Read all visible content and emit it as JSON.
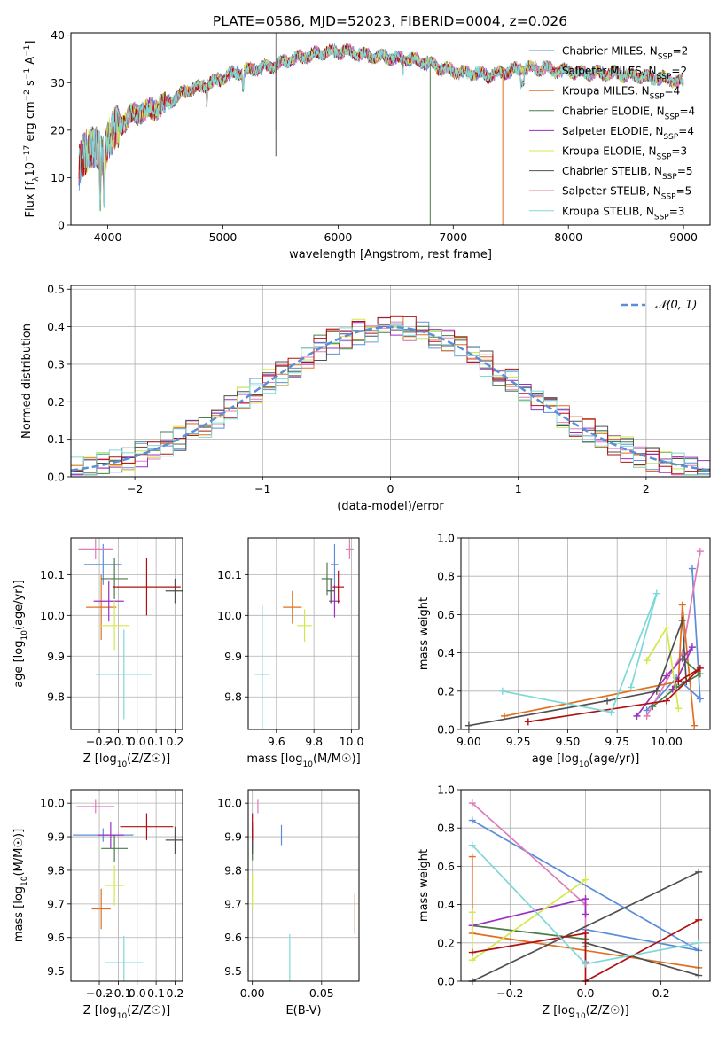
{
  "figure_title": "PLATE=0586, MJD=52023, FIBERID=0004, z=0.026",
  "fits": [
    {
      "name": "Chabrier MILES, N_SSP=2",
      "imf": "Chabrier",
      "lib": "MILES",
      "nssp": "2",
      "color": "#5b8dd9"
    },
    {
      "name": "Salpeter MILES, N_SSP=2",
      "imf": "Salpeter",
      "lib": "MILES",
      "nssp": "2",
      "color": "#e07bb8"
    },
    {
      "name": "Kroupa MILES, N_SSP=4",
      "imf": "Kroupa",
      "lib": "MILES",
      "nssp": "4",
      "color": "#e07020"
    },
    {
      "name": "Chabrier ELODIE, N_SSP=4",
      "imf": "Chabrier",
      "lib": "ELODIE",
      "nssp": "4",
      "color": "#4a7d4a"
    },
    {
      "name": "Salpeter ELODIE, N_SSP=4",
      "imf": "Salpeter",
      "lib": "ELODIE",
      "nssp": "4",
      "color": "#9b30c0"
    },
    {
      "name": "Kroupa ELODIE, N_SSP=3",
      "imf": "Kroupa",
      "lib": "ELODIE",
      "nssp": "3",
      "color": "#d4e84a"
    },
    {
      "name": "Chabrier STELIB, N_SSP=5",
      "imf": "Chabrier",
      "lib": "STELIB",
      "nssp": "5",
      "color": "#505050"
    },
    {
      "name": "Salpeter STELIB, N_SSP=5",
      "imf": "Salpeter",
      "lib": "STELIB",
      "nssp": "5",
      "color": "#b01010"
    },
    {
      "name": "Kroupa STELIB, N_SSP=3",
      "imf": "Kroupa",
      "lib": "STELIB",
      "nssp": "3",
      "color": "#7fd8d8"
    }
  ],
  "chart_data": [
    {
      "id": "spectrum",
      "type": "line",
      "xlabel": "wavelength [Angstrom, rest frame]",
      "ylabel": "Flux [f_λ10^-17 erg cm^-2 s^-1 A^-1]",
      "xlim": [
        3680,
        9230
      ],
      "ylim": [
        0,
        40.5
      ],
      "xticks": [
        4000,
        5000,
        6000,
        7000,
        8000,
        9000
      ],
      "yticks": [
        0,
        10,
        20,
        30,
        40
      ],
      "grid": false,
      "legend": "top-right",
      "continuum": {
        "x": [
          3750,
          3800,
          3850,
          3900,
          3950,
          4000,
          4100,
          4200,
          4300,
          4400,
          4500,
          4600,
          4700,
          4800,
          4900,
          5000,
          5100,
          5200,
          5300,
          5400,
          5500,
          5600,
          5700,
          5800,
          5900,
          6000,
          6100,
          6200,
          6300,
          6400,
          6500,
          6600,
          6700,
          6800,
          6900,
          7000,
          7100,
          7200,
          7300,
          7400,
          7500,
          7600,
          7700,
          7800,
          7900,
          8000,
          8100,
          8200,
          8300,
          8400,
          8500,
          8600,
          8700,
          8800,
          8900,
          9000
        ],
        "y": [
          12,
          15,
          17,
          16,
          14,
          18,
          21,
          23,
          24,
          24.5,
          25.5,
          27,
          28.5,
          29,
          30,
          31,
          32,
          32.5,
          33,
          33.5,
          34,
          35,
          35.5,
          36,
          36.5,
          36.5,
          36.5,
          36,
          35.5,
          35.5,
          35,
          35,
          34.5,
          34,
          33,
          32.5,
          32,
          32,
          31.5,
          32,
          32.5,
          33,
          33,
          33,
          32.5,
          32.5,
          32,
          32,
          32,
          32,
          31.5,
          31.5,
          31,
          31,
          30.5,
          30
        ]
      },
      "spikes": [
        {
          "x": 5460,
          "y": 14.5,
          "color": "#505050"
        },
        {
          "x": 6800,
          "y": 0,
          "color": "#4a7d4a"
        },
        {
          "x": 7430,
          "y": 0,
          "color": "#e07020"
        }
      ]
    },
    {
      "id": "residuals",
      "type": "line",
      "xlabel": "(data-model)/error",
      "ylabel": "Normed distribution",
      "xlim": [
        -2.5,
        2.5
      ],
      "ylim": [
        0,
        0.51
      ],
      "xticks": [
        -2,
        -1,
        0,
        1,
        2
      ],
      "yticks": [
        0,
        0.1,
        0.2,
        0.3,
        0.4,
        0.5
      ],
      "grid": true,
      "legend": "top-right",
      "reference": {
        "name": "N(0,1)",
        "label": "𝒩(0, 1)",
        "color": "#5b8dd9"
      },
      "bin_width": 0.1
    },
    {
      "id": "age_vs_Z",
      "type": "scatter",
      "xlabel": "Z [log10(Z/Z☉)]",
      "ylabel": "age [log10(age/yr)]",
      "xlim": [
        -0.35,
        0.24
      ],
      "ylim": [
        9.72,
        10.19
      ],
      "xticks": [
        -0.2,
        -0.1,
        0.0,
        0.1,
        0.2
      ],
      "yticks": [
        9.8,
        9.9,
        10.0,
        10.1
      ],
      "grid": true,
      "points": [
        {
          "x": -0.18,
          "y": 10.125,
          "xerr": 0.1,
          "yerr": 0.05
        },
        {
          "x": -0.22,
          "y": 10.163,
          "xerr": 0.09,
          "yerr": 0.025
        },
        {
          "x": -0.19,
          "y": 10.02,
          "xerr": 0.08,
          "yerr": 0.08
        },
        {
          "x": -0.12,
          "y": 10.09,
          "xerr": 0.07,
          "yerr": 0.05
        },
        {
          "x": -0.15,
          "y": 10.035,
          "xerr": 0.08,
          "yerr": 0.05
        },
        {
          "x": -0.12,
          "y": 9.975,
          "xerr": 0.08,
          "yerr": 0.06
        },
        {
          "x": 0.2,
          "y": 10.06,
          "xerr": 0.05,
          "yerr": 0.03
        },
        {
          "x": 0.05,
          "y": 10.07,
          "xerr": 0.18,
          "yerr": 0.07
        },
        {
          "x": -0.07,
          "y": 9.855,
          "xerr": 0.15,
          "yerr": 0.11
        }
      ]
    },
    {
      "id": "age_vs_mass",
      "type": "scatter",
      "xlabel": "mass [log10(M/M☉)]",
      "ylabel": "",
      "xlim": [
        9.45,
        10.04
      ],
      "ylim": [
        9.72,
        10.19
      ],
      "xticks": [
        9.6,
        9.8,
        10.0
      ],
      "yticks": [
        9.8,
        9.9,
        10.0,
        10.1
      ],
      "grid": true,
      "points": [
        {
          "x": 9.91,
          "y": 10.125,
          "xerr": 0.02,
          "yerr": 0.05
        },
        {
          "x": 9.99,
          "y": 10.163,
          "xerr": 0.02,
          "yerr": 0.025
        },
        {
          "x": 9.685,
          "y": 10.02,
          "xerr": 0.05,
          "yerr": 0.04
        },
        {
          "x": 9.87,
          "y": 10.09,
          "xerr": 0.03,
          "yerr": 0.04
        },
        {
          "x": 9.91,
          "y": 10.035,
          "xerr": 0.03,
          "yerr": 0.04
        },
        {
          "x": 9.75,
          "y": 9.975,
          "xerr": 0.04,
          "yerr": 0.04
        },
        {
          "x": 9.89,
          "y": 10.06,
          "xerr": 0.02,
          "yerr": 0.03
        },
        {
          "x": 9.93,
          "y": 10.07,
          "xerr": 0.03,
          "yerr": 0.04
        },
        {
          "x": 9.525,
          "y": 9.855,
          "xerr": 0.04,
          "yerr": 0.17
        }
      ]
    },
    {
      "id": "weight_vs_age",
      "type": "line",
      "xlabel": "age [log10(age/yr)]",
      "ylabel": "mass weight",
      "xlim": [
        8.96,
        10.22
      ],
      "ylim": [
        0,
        1.0
      ],
      "xticks": [
        9.0,
        9.25,
        9.5,
        9.75,
        10.0
      ],
      "xticklabels": [
        "9.00",
        "9.25",
        "9.50",
        "9.75",
        "10.00"
      ],
      "yticks": [
        0,
        0.2,
        0.4,
        0.6,
        0.8,
        1.0
      ],
      "grid": true,
      "series": [
        {
          "x": [
            10.13,
            10.17,
            10.05,
            9.9
          ],
          "y": [
            0.84,
            0.16,
            0.27,
            0.1
          ]
        },
        {
          "x": [
            10.17,
            10.08,
            9.9
          ],
          "y": [
            0.93,
            0.4,
            0.07
          ]
        },
        {
          "x": [
            9.18,
            10.06,
            10.08,
            10.14
          ],
          "y": [
            0.07,
            0.25,
            0.65,
            0.02
          ]
        },
        {
          "x": [
            9.93,
            10.05,
            10.17,
            10.08
          ],
          "y": [
            0.12,
            0.22,
            0.29,
            0.37
          ]
        },
        {
          "x": [
            9.85,
            10.0,
            10.13,
            10.03
          ],
          "y": [
            0.07,
            0.28,
            0.43,
            0.21
          ]
        },
        {
          "x": [
            9.9,
            10.0,
            10.06
          ],
          "y": [
            0.36,
            0.53,
            0.11
          ]
        },
        {
          "x": [
            9.0,
            9.7,
            9.95,
            10.08,
            10.1
          ],
          "y": [
            0.02,
            0.15,
            0.2,
            0.57,
            0.25
          ]
        },
        {
          "x": [
            9.3,
            10.0,
            10.17,
            10.06
          ],
          "y": [
            0.04,
            0.15,
            0.32,
            0.25
          ]
        },
        {
          "x": [
            9.17,
            9.72,
            9.95,
            9.82
          ],
          "y": [
            0.2,
            0.09,
            0.71,
            0.22
          ]
        }
      ]
    },
    {
      "id": "mass_vs_Z",
      "type": "scatter",
      "xlabel": "Z [log10(Z/Z☉)]",
      "ylabel": "mass [log10(M/M☉)]",
      "xlim": [
        -0.35,
        0.24
      ],
      "ylim": [
        9.47,
        10.04
      ],
      "xticks": [
        -0.2,
        -0.1,
        0.0,
        0.1,
        0.2
      ],
      "yticks": [
        9.5,
        9.6,
        9.7,
        9.8,
        9.9,
        10.0
      ],
      "grid": true,
      "points": [
        {
          "x": -0.18,
          "y": 9.905,
          "xerr": 0.16,
          "yerr": 0.02
        },
        {
          "x": -0.22,
          "y": 9.99,
          "xerr": 0.1,
          "yerr": 0.02
        },
        {
          "x": -0.19,
          "y": 9.685,
          "xerr": 0.05,
          "yerr": 0.06
        },
        {
          "x": -0.12,
          "y": 9.865,
          "xerr": 0.07,
          "yerr": 0.04
        },
        {
          "x": -0.14,
          "y": 9.905,
          "xerr": 0.07,
          "yerr": 0.04
        },
        {
          "x": -0.12,
          "y": 9.755,
          "xerr": 0.05,
          "yerr": 0.06
        },
        {
          "x": 0.2,
          "y": 9.89,
          "xerr": 0.05,
          "yerr": 0.04
        },
        {
          "x": 0.05,
          "y": 9.93,
          "xerr": 0.14,
          "yerr": 0.04
        },
        {
          "x": -0.07,
          "y": 9.525,
          "xerr": 0.1,
          "yerr": 0.08
        }
      ]
    },
    {
      "id": "mass_vs_ebv",
      "type": "scatter",
      "xlabel": "E(B-V)",
      "ylabel": "",
      "xlim": [
        -0.003,
        0.077
      ],
      "ylim": [
        9.47,
        10.04
      ],
      "xticks": [
        0.0,
        0.05
      ],
      "xticklabels": [
        "0.00",
        "0.05"
      ],
      "yticks": [
        9.5,
        9.6,
        9.7,
        9.8,
        9.9,
        10.0
      ],
      "grid": true,
      "points": [
        {
          "x": 0.021,
          "y": 9.905,
          "xerr": 0,
          "yerr": 0.03
        },
        {
          "x": 0.004,
          "y": 9.99,
          "xerr": 0,
          "yerr": 0.02
        },
        {
          "x": 0.074,
          "y": 9.67,
          "xerr": 0,
          "yerr": 0.06
        },
        {
          "x": 0.0,
          "y": 9.87,
          "xerr": 0,
          "yerr": 0.04
        },
        {
          "x": 0.0,
          "y": 9.905,
          "xerr": 0,
          "yerr": 0.04
        },
        {
          "x": 0.0,
          "y": 9.74,
          "xerr": 0,
          "yerr": 0.05
        },
        {
          "x": 0.0,
          "y": 9.89,
          "xerr": 0,
          "yerr": 0.04
        },
        {
          "x": 0.0,
          "y": 9.93,
          "xerr": 0,
          "yerr": 0.04
        },
        {
          "x": 0.027,
          "y": 9.53,
          "xerr": 0,
          "yerr": 0.08
        }
      ]
    },
    {
      "id": "weight_vs_Z",
      "type": "line",
      "xlabel": "Z [log10(Z/Z☉)]",
      "ylabel": "mass weight",
      "xlim": [
        -0.33,
        0.33
      ],
      "ylim": [
        0,
        1.0
      ],
      "xticks": [
        -0.2,
        0.0,
        0.2
      ],
      "yticks": [
        0,
        0.2,
        0.4,
        0.6,
        0.8,
        1.0
      ],
      "grid": true,
      "series": [
        {
          "x": [
            -0.3,
            0.3,
            0.0,
            0.0
          ],
          "y": [
            0.84,
            0.16,
            0.27,
            0.1
          ]
        },
        {
          "x": [
            -0.3,
            0.0,
            0.0
          ],
          "y": [
            0.93,
            0.4,
            0.1
          ]
        },
        {
          "x": [
            -0.3,
            -0.3,
            0.3
          ],
          "y": [
            0.65,
            0.25,
            0.07
          ]
        },
        {
          "x": [
            -0.3,
            0.0,
            0.0
          ],
          "y": [
            0.29,
            0.22,
            0.18
          ]
        },
        {
          "x": [
            -0.3,
            0.0,
            0.0
          ],
          "y": [
            0.29,
            0.43,
            0.35
          ]
        },
        {
          "x": [
            -0.3,
            -0.3,
            0.0
          ],
          "y": [
            0.36,
            0.11,
            0.53
          ]
        },
        {
          "x": [
            -0.3,
            0.3,
            0.3,
            0.0
          ],
          "y": [
            0.0,
            0.57,
            0.03,
            0.2
          ]
        },
        {
          "x": [
            -0.3,
            0.0,
            0.0,
            0.3
          ],
          "y": [
            0.15,
            0.25,
            0.0,
            0.32
          ]
        },
        {
          "x": [
            -0.3,
            0.0,
            0.3
          ],
          "y": [
            0.71,
            0.09,
            0.2
          ]
        }
      ]
    }
  ]
}
